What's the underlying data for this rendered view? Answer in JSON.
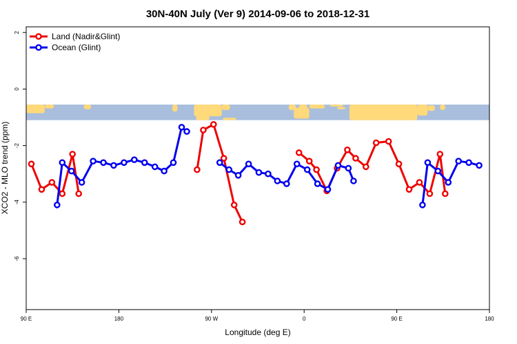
{
  "chart_data": {
    "type": "line",
    "title": "30N-40N July (Ver 9)   2014-09-06 to 2018-12-31",
    "xlabel": "Longitude (deg E)",
    "ylabel": "XCO2 - MLO trend (ppm)",
    "xlim": [
      90,
      540
    ],
    "ylim": [
      -7.8,
      2.2
    ],
    "x_ticks": [
      {
        "value": 90,
        "label": "90 E"
      },
      {
        "value": 180,
        "label": "180"
      },
      {
        "value": 270,
        "label": "90 W"
      },
      {
        "value": 360,
        "label": "0"
      },
      {
        "value": 450,
        "label": "90 E"
      },
      {
        "value": 540,
        "label": "180"
      }
    ],
    "y_ticks": [
      {
        "value": 2,
        "label": "2"
      },
      {
        "value": 0,
        "label": "0"
      },
      {
        "value": -2,
        "label": "-2"
      },
      {
        "value": -4,
        "label": "-4"
      },
      {
        "value": -6,
        "label": "-6"
      }
    ],
    "grid": false,
    "legend_position": "top-left",
    "map_band": {
      "ymin": -1.1,
      "ymax": -0.55,
      "ocean_color": "#A9BEDD",
      "land_color": "#FFD97A"
    },
    "series": [
      {
        "name": "Land (Nadir&Glint)",
        "color": "#EE0000",
        "segments": [
          [
            [
              95,
              -2.65
            ],
            [
              105,
              -3.55
            ],
            [
              115,
              -3.3
            ],
            [
              125,
              -3.7
            ],
            [
              135,
              -2.3
            ],
            [
              141,
              -3.7
            ]
          ],
          [
            [
              256,
              -2.85
            ],
            [
              262,
              -1.45
            ],
            [
              272,
              -1.25
            ],
            [
              282,
              -2.45
            ],
            [
              292,
              -4.1
            ],
            [
              300,
              -4.7
            ]
          ],
          [
            [
              355,
              -2.25
            ],
            [
              365,
              -2.55
            ],
            [
              372,
              -2.85
            ],
            [
              382,
              -3.6
            ],
            [
              392,
              -2.8
            ],
            [
              402,
              -2.15
            ],
            [
              410,
              -2.45
            ],
            [
              420,
              -2.75
            ],
            [
              430,
              -1.9
            ],
            [
              442,
              -1.85
            ],
            [
              452,
              -2.65
            ],
            [
              462,
              -3.55
            ],
            [
              472,
              -3.3
            ],
            [
              482,
              -3.7
            ],
            [
              492,
              -2.3
            ],
            [
              497,
              -3.7
            ]
          ]
        ]
      },
      {
        "name": "Ocean (Glint)",
        "color": "#0000EE",
        "segments": [
          [
            [
              120,
              -4.1
            ],
            [
              125,
              -2.6
            ],
            [
              134,
              -2.9
            ],
            [
              144,
              -3.3
            ],
            [
              155,
              -2.55
            ],
            [
              165,
              -2.6
            ],
            [
              175,
              -2.7
            ],
            [
              185,
              -2.6
            ],
            [
              195,
              -2.5
            ],
            [
              205,
              -2.6
            ],
            [
              215,
              -2.75
            ],
            [
              224,
              -2.9
            ],
            [
              233,
              -2.6
            ],
            [
              241,
              -1.35
            ],
            [
              246,
              -1.5
            ]
          ],
          [
            [
              278,
              -2.6
            ],
            [
              287,
              -2.85
            ],
            [
              296,
              -3.05
            ],
            [
              306,
              -2.65
            ],
            [
              316,
              -2.95
            ],
            [
              325,
              -3.0
            ],
            [
              334,
              -3.25
            ],
            [
              343,
              -3.35
            ],
            [
              353,
              -2.65
            ],
            [
              363,
              -2.85
            ],
            [
              373,
              -3.35
            ],
            [
              383,
              -3.55
            ],
            [
              393,
              -2.7
            ],
            [
              403,
              -2.8
            ],
            [
              408,
              -3.25
            ]
          ],
          [
            [
              475,
              -4.1
            ],
            [
              480,
              -2.6
            ],
            [
              490,
              -2.9
            ],
            [
              500,
              -3.3
            ],
            [
              510,
              -2.55
            ],
            [
              520,
              -2.6
            ],
            [
              530,
              -2.7
            ]
          ]
        ]
      }
    ]
  }
}
